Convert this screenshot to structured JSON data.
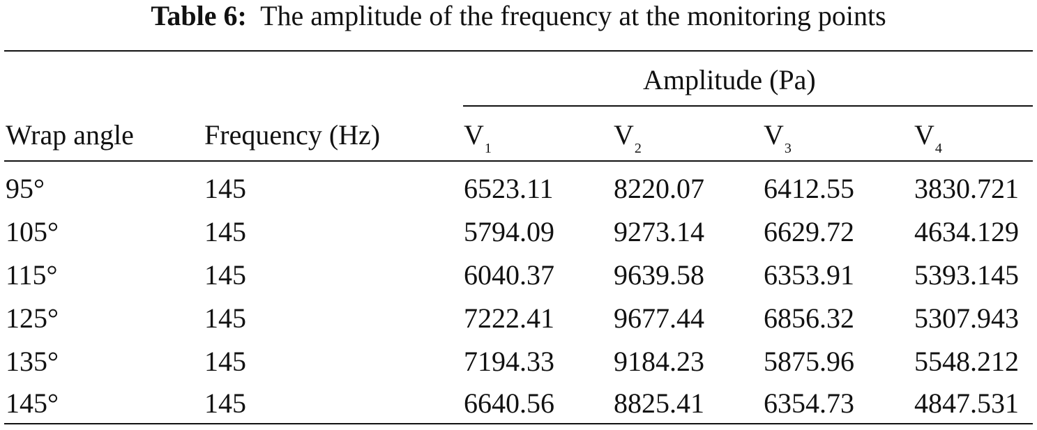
{
  "table": {
    "caption_label": "Table 6:",
    "caption_text": "The amplitude of the frequency at the monitoring points",
    "group_header": "Amplitude (Pa)",
    "col_wrap": "Wrap angle",
    "col_freq": "Frequency (Hz)",
    "v_cols": [
      {
        "base": "V",
        "sub": "1"
      },
      {
        "base": "V",
        "sub": "2"
      },
      {
        "base": "V",
        "sub": "3"
      },
      {
        "base": "V",
        "sub": "4"
      }
    ],
    "rows": [
      {
        "wrap": "95°",
        "freq": "145",
        "v": [
          "6523.11",
          "8220.07",
          "6412.55",
          "3830.721"
        ]
      },
      {
        "wrap": "105°",
        "freq": "145",
        "v": [
          "5794.09",
          "9273.14",
          "6629.72",
          "4634.129"
        ]
      },
      {
        "wrap": "115°",
        "freq": "145",
        "v": [
          "6040.37",
          "9639.58",
          "6353.91",
          "5393.145"
        ]
      },
      {
        "wrap": "125°",
        "freq": "145",
        "v": [
          "7222.41",
          "9677.44",
          "6856.32",
          "5307.943"
        ]
      },
      {
        "wrap": "135°",
        "freq": "145",
        "v": [
          "7194.33",
          "9184.23",
          "5875.96",
          "5548.212"
        ]
      },
      {
        "wrap": "145°",
        "freq": "145",
        "v": [
          "6640.56",
          "8825.41",
          "6354.73",
          "4847.531"
        ]
      }
    ]
  }
}
